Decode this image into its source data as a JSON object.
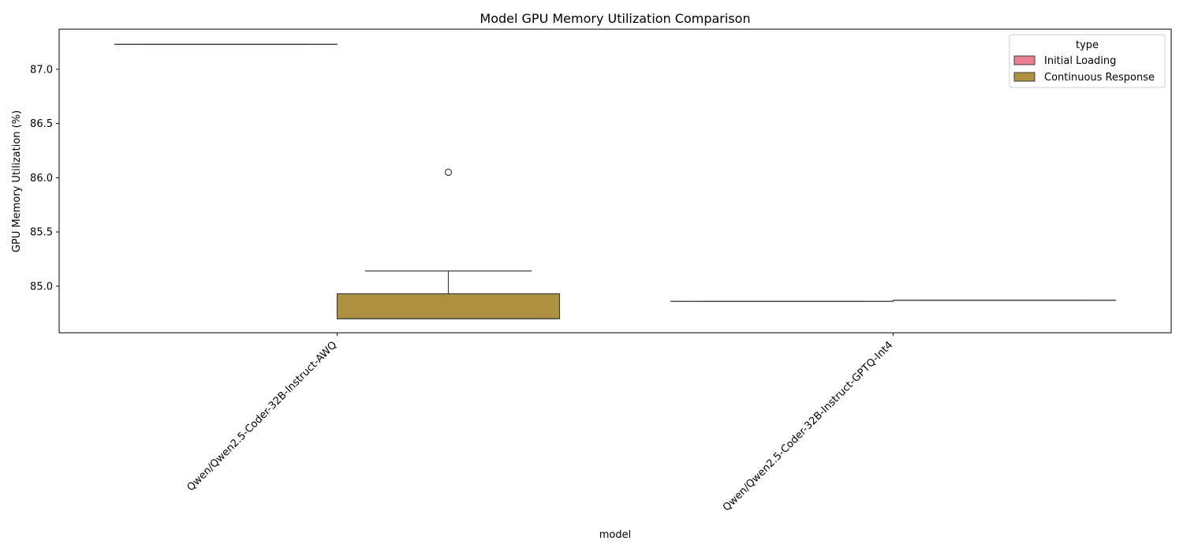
{
  "chart_data": {
    "type": "box",
    "title": "Model GPU Memory Utilization Comparison",
    "xlabel": "model",
    "ylabel": "GPU Memory Utilization (%)",
    "categories": [
      "Qwen/Qwen2.5-Coder-32B-Instruct-AWQ",
      "Qwen/Qwen2.5-Coder-32B-Instruct-GPTQ-Int4"
    ],
    "ylim": [
      84.57,
      87.37
    ],
    "yticks": [
      "85.0",
      "85.5",
      "86.0",
      "86.5",
      "87.0"
    ],
    "legend": {
      "title": "type",
      "placement": "top-right"
    },
    "grid": false,
    "series": [
      {
        "name": "Initial Loading",
        "color": "#e8808f",
        "boxes": [
          {
            "min": 87.23,
            "q1": 87.23,
            "median": 87.23,
            "q3": 87.23,
            "max": 87.23,
            "outliers": []
          },
          {
            "min": 84.86,
            "q1": 84.86,
            "median": 84.86,
            "q3": 84.86,
            "max": 84.86,
            "outliers": []
          }
        ]
      },
      {
        "name": "Continuous Response",
        "color": "#ad9040",
        "boxes": [
          {
            "min": 84.7,
            "q1": 84.7,
            "median": 84.7,
            "q3": 84.93,
            "max": 85.14,
            "outliers": [
              86.05
            ]
          },
          {
            "min": 84.87,
            "q1": 84.87,
            "median": 84.87,
            "q3": 84.87,
            "max": 84.87,
            "outliers": []
          }
        ]
      }
    ]
  }
}
